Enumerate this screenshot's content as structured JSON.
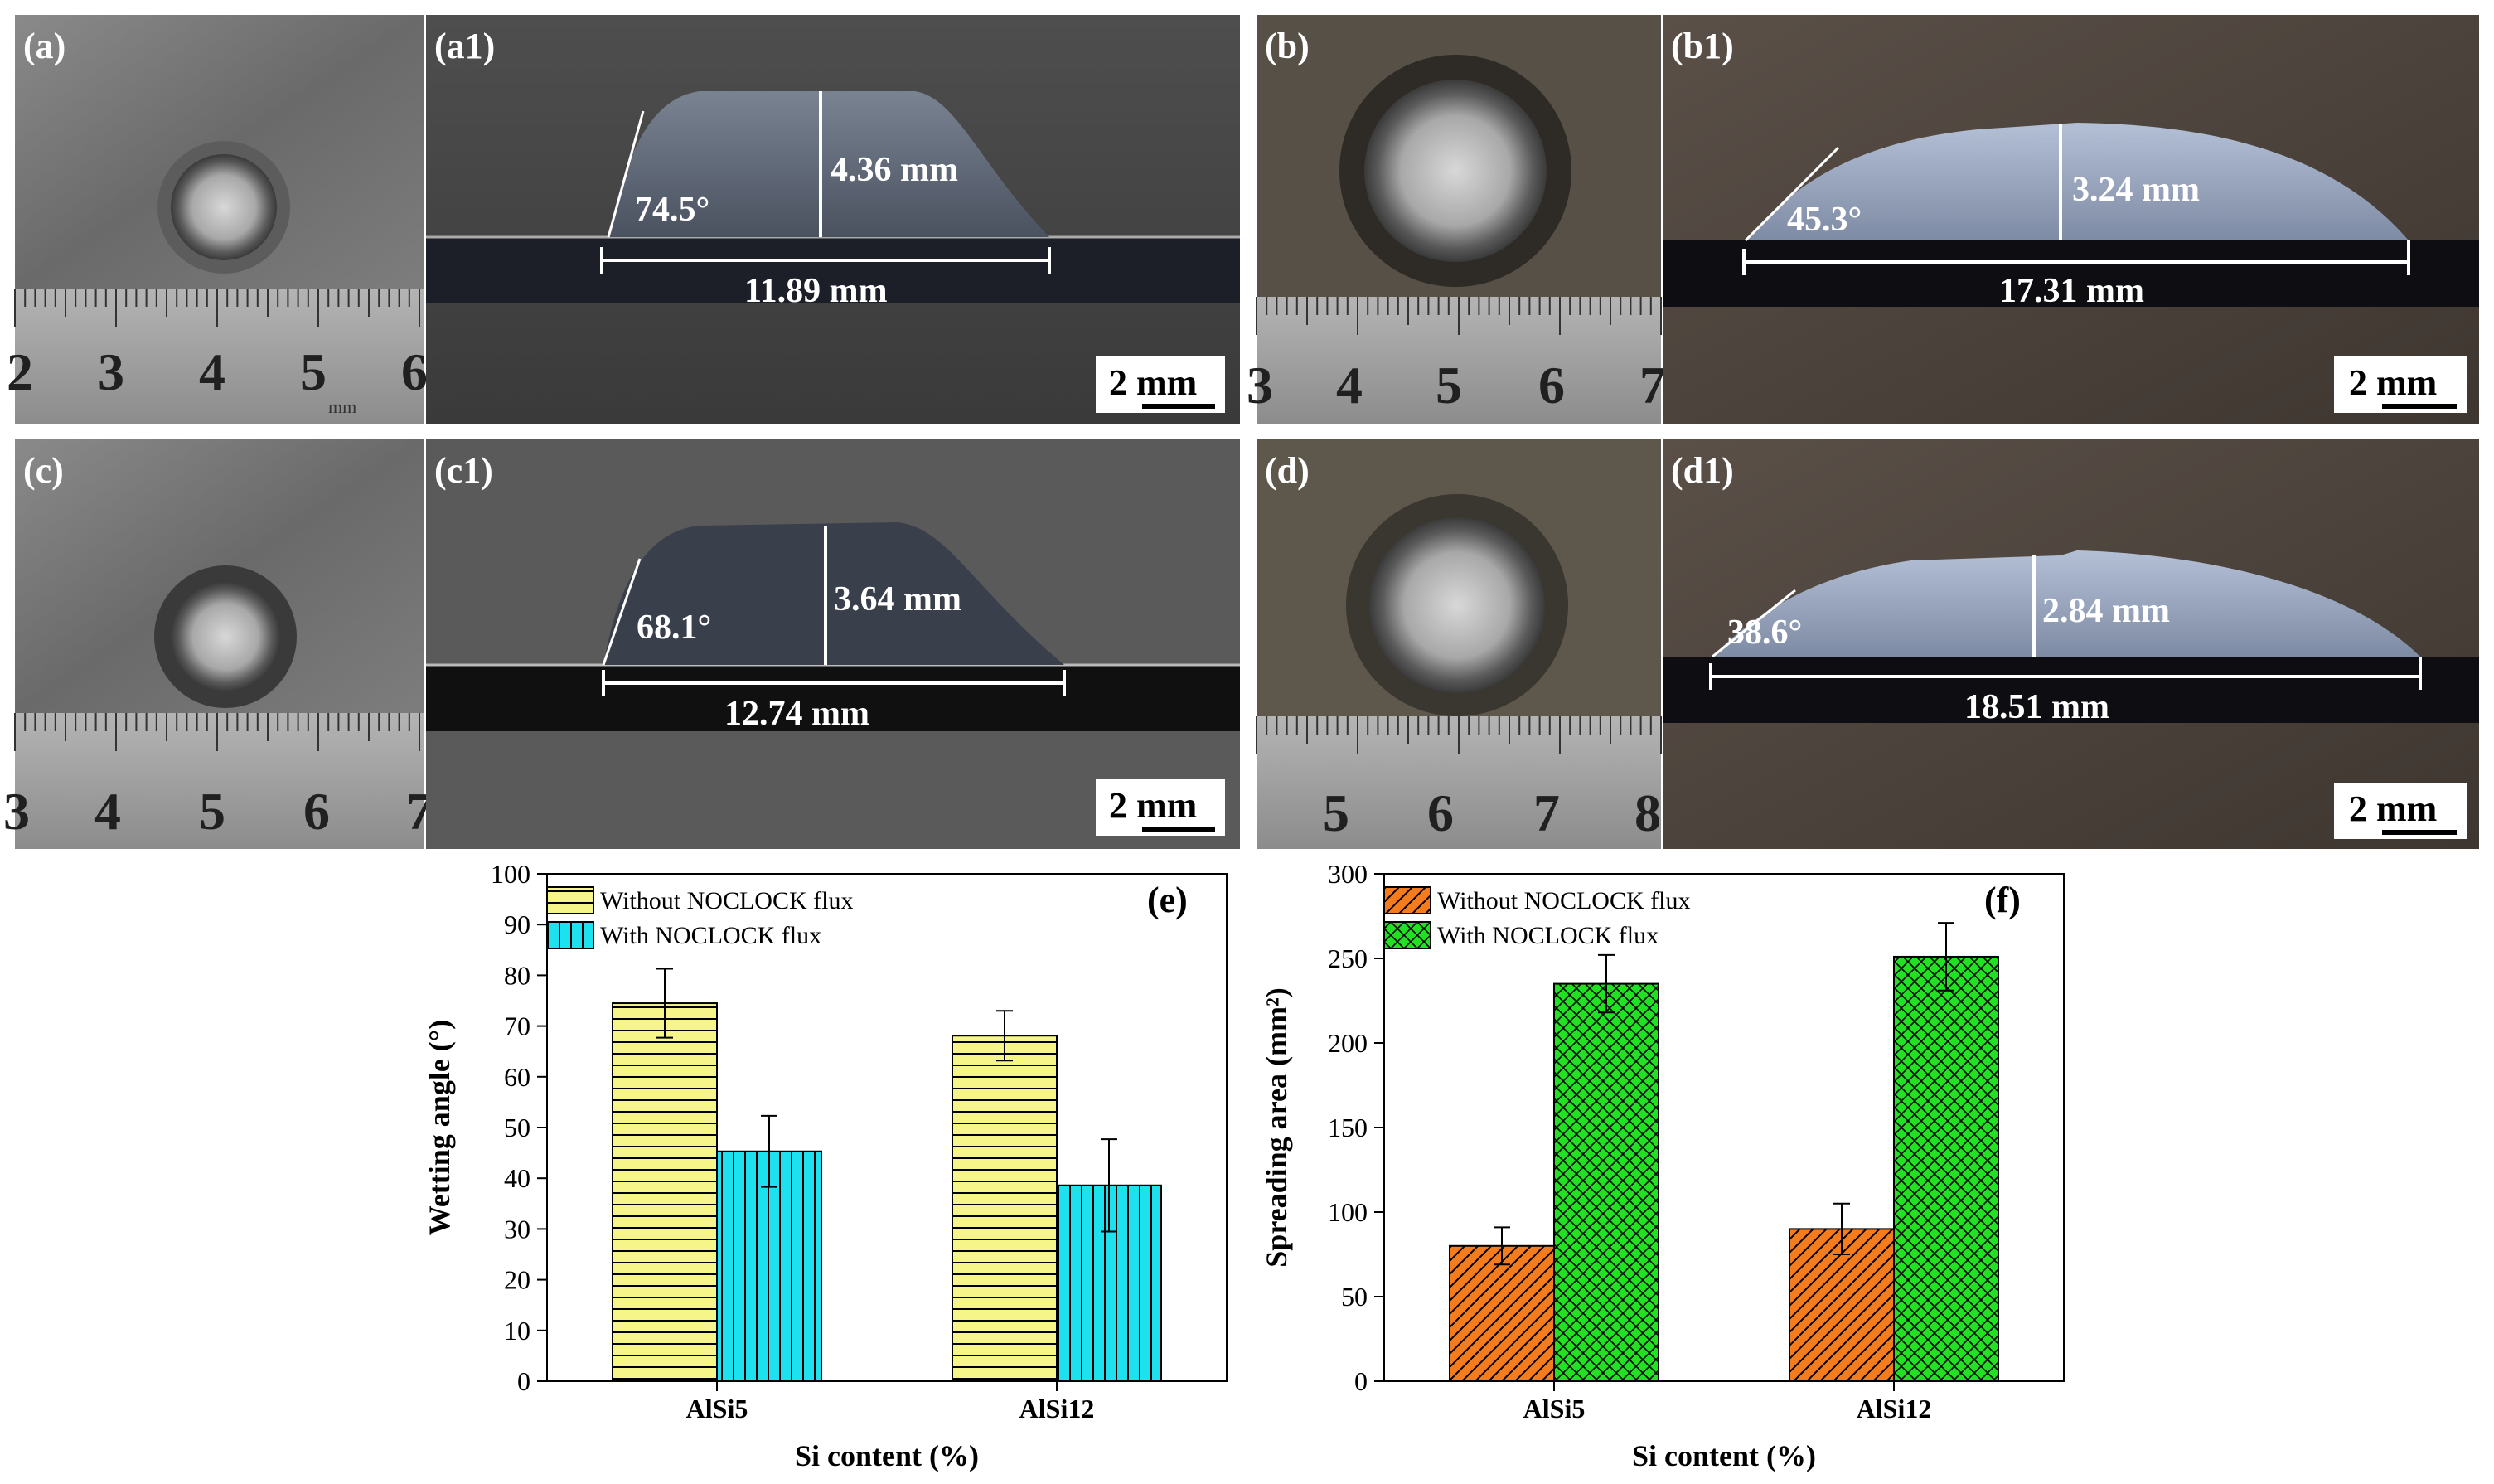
{
  "photos": {
    "top_left_pair": {
      "top": "(a)",
      "cross": "(a1)",
      "angle": "74.5°",
      "height": "4.36 mm",
      "width": "11.89 mm",
      "ruler": [
        "2",
        "3",
        "4",
        "5",
        "6"
      ],
      "ruler_unit": "mm",
      "scale": "2 mm"
    },
    "top_right_pair": {
      "top": "(b)",
      "cross": "(b1)",
      "angle": "45.3°",
      "height": "3.24 mm",
      "width": "17.31 mm",
      "ruler": [
        "3",
        "4",
        "5",
        "6",
        "7"
      ],
      "scale": "2 mm"
    },
    "bottom_left_pair": {
      "top": "(c)",
      "cross": "(c1)",
      "angle": "68.1°",
      "height": "3.64 mm",
      "width": "12.74 mm",
      "ruler": [
        "3",
        "4",
        "5",
        "6",
        "7"
      ],
      "scale": "2 mm"
    },
    "bottom_right_pair": {
      "top": "(d)",
      "cross": "(d1)",
      "angle": "38.6°",
      "height": "2.84 mm",
      "width": "18.51 mm",
      "ruler": [
        "5",
        "6",
        "7",
        "8"
      ],
      "scale": "2 mm"
    }
  },
  "chart_data": [
    {
      "type": "bar",
      "tag": "(e)",
      "categories": [
        "AlSi5",
        "AlSi12"
      ],
      "series": [
        {
          "name": "Without NOCLOCK flux",
          "values": [
            74.5,
            68.1
          ],
          "errors": [
            6.8,
            4.9
          ],
          "color": "#f5f58a",
          "hatch": "horizontal"
        },
        {
          "name": "With NOCLOCK flux",
          "values": [
            45.3,
            38.6
          ],
          "errors": [
            7.0,
            9.1
          ],
          "color": "#1ee1f0",
          "hatch": "vertical"
        }
      ],
      "xlabel": "Si content (%)",
      "ylabel": "Wetting angle (°)",
      "ylim": [
        0,
        100
      ],
      "yticks": [
        "0",
        "10",
        "20",
        "30",
        "40",
        "50",
        "60",
        "70",
        "80",
        "90",
        "100"
      ]
    },
    {
      "type": "bar",
      "tag": "(f)",
      "categories": [
        "AlSi5",
        "AlSi12"
      ],
      "series": [
        {
          "name": "Without NOCLOCK flux",
          "values": [
            80,
            90
          ],
          "errors": [
            11,
            15
          ],
          "color": "#f47c1c",
          "hatch": "diagonal"
        },
        {
          "name": "With NOCLOCK flux",
          "values": [
            235,
            251
          ],
          "errors": [
            17,
            20
          ],
          "color": "#22e022",
          "hatch": "crosshatch"
        }
      ],
      "xlabel": "Si content (%)",
      "ylabel": "Spreading area (mm²)",
      "ylim": [
        0,
        300
      ],
      "yticks": [
        "0",
        "50",
        "100",
        "150",
        "200",
        "250",
        "300"
      ]
    }
  ]
}
